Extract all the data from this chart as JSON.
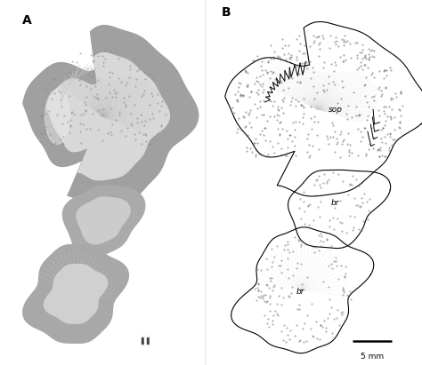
{
  "panel_A_label": "A",
  "panel_B_label": "B",
  "panel_A_bg": "#000000",
  "panel_B_bg": "#ffffff",
  "label_sop": "sop",
  "label_br1": "br",
  "label_br2": "br",
  "scalebar_text": "5 mm",
  "fig_bg": "#ffffff",
  "label_fontsize": 10,
  "annotation_fontsize": 6.5,
  "scalebar_fontsize": 6.5
}
